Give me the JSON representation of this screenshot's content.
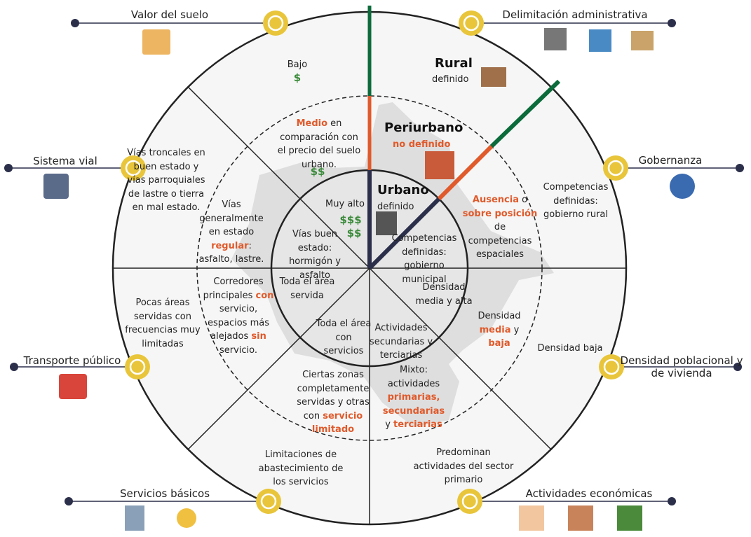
{
  "outer_labels": [
    "Valor del suelo",
    "Delimitación administrativa",
    "Sistema vial",
    "Gobernanza",
    "Transporte público",
    "Densidad poblacional y de vivienda",
    "Servicios básicos",
    "Actividades económicas"
  ],
  "zones": [
    {
      "name": "Rural",
      "status": "definido"
    },
    {
      "name": "Periurbano",
      "status": "no definido"
    },
    {
      "name": "Urbano",
      "status": "definido"
    }
  ],
  "blocks": [
    {
      "runs": [
        {
          "text": "Bajo"
        }
      ]
    },
    {
      "runs": [
        {
          "text": "$",
          "money": true
        }
      ]
    },
    {
      "runs": [
        {
          "text": "Medio",
          "em": true
        },
        {
          "text": " en comparación con el precio del suelo urbano."
        }
      ]
    },
    {
      "runs": [
        {
          "text": "$$",
          "money": true
        }
      ]
    },
    {
      "runs": [
        {
          "text": "Muy alto"
        }
      ]
    },
    {
      "runs": [
        {
          "text": "$$$",
          "money": true
        }
      ]
    },
    {
      "runs": [
        {
          "text": "$$",
          "money": true
        }
      ]
    },
    {
      "runs": [
        {
          "text": "Vías troncales en buen estado y vías parroquiales de lastre o tierra en mal estado."
        }
      ]
    },
    {
      "runs": [
        {
          "text": "Vías generalmente en estado "
        },
        {
          "text": "regular",
          "em": true
        },
        {
          "text": ": asfalto, lastre."
        }
      ]
    },
    {
      "runs": [
        {
          "text": "Vías buen estado: hormigón y asfalto"
        }
      ]
    },
    {
      "runs": [
        {
          "text": "Pocas áreas servidas con frecuencias muy limitadas"
        }
      ]
    },
    {
      "runs": [
        {
          "text": "Corredores principales "
        },
        {
          "text": "con",
          "em": true
        },
        {
          "text": " servicio, espacios más alejados "
        },
        {
          "text": "sin",
          "em": true
        },
        {
          "text": " servicio."
        }
      ]
    },
    {
      "runs": [
        {
          "text": "Toda el área servida"
        }
      ]
    },
    {
      "runs": [
        {
          "text": "Limitaciones de abastecimiento de los servicios"
        }
      ]
    },
    {
      "runs": [
        {
          "text": "Ciertas zonas completamente servidas y otras con "
        },
        {
          "text": "servicio limitado",
          "em": true
        }
      ]
    },
    {
      "runs": [
        {
          "text": "Toda el área con servicios"
        }
      ]
    },
    {
      "runs": [
        {
          "text": "Predominan actividades del sector primario"
        }
      ]
    },
    {
      "runs": [
        {
          "text": "Mixto: actividades "
        },
        {
          "text": "primarias, secundarias",
          "em": true
        },
        {
          "text": " y "
        },
        {
          "text": "terciarias",
          "em": true
        }
      ]
    },
    {
      "runs": [
        {
          "text": "Actividades secundarias y terciarias"
        }
      ]
    },
    {
      "runs": [
        {
          "text": "Densidad baja"
        }
      ]
    },
    {
      "runs": [
        {
          "text": "Densidad "
        },
        {
          "text": "media",
          "em": true
        },
        {
          "text": " y "
        },
        {
          "text": "baja",
          "em": true
        }
      ]
    },
    {
      "runs": [
        {
          "text": "Densidad media y alta"
        }
      ]
    },
    {
      "runs": [
        {
          "text": "Competencias definidas: gobierno rural"
        }
      ]
    },
    {
      "runs": [
        {
          "text": "Ausencia",
          "em": true
        },
        {
          "text": " o "
        },
        {
          "text": "sobre posición",
          "em": true
        },
        {
          "text": " de competencias espaciales"
        }
      ]
    },
    {
      "runs": [
        {
          "text": "Competencias definidas: gobierno municipal"
        }
      ]
    }
  ]
}
